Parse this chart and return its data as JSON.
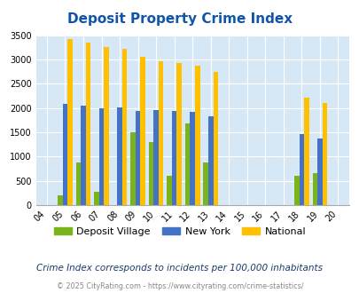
{
  "title": "Deposit Property Crime Index",
  "years": [
    2004,
    2005,
    2006,
    2007,
    2008,
    2009,
    2010,
    2011,
    2012,
    2013,
    2014,
    2015,
    2016,
    2017,
    2018,
    2019,
    2020
  ],
  "deposit_village": [
    0,
    200,
    870,
    270,
    0,
    1500,
    1300,
    610,
    1680,
    870,
    0,
    0,
    0,
    0,
    600,
    650,
    0
  ],
  "new_york": [
    0,
    2090,
    2050,
    2000,
    2020,
    1940,
    1950,
    1930,
    1920,
    1820,
    0,
    0,
    0,
    0,
    1460,
    1380,
    0
  ],
  "national": [
    0,
    3420,
    3350,
    3260,
    3210,
    3050,
    2960,
    2920,
    2870,
    2740,
    0,
    0,
    0,
    0,
    2210,
    2110,
    0
  ],
  "deposit_color": "#7bb31a",
  "newyork_color": "#4472c4",
  "national_color": "#ffc000",
  "bg_color": "#d6e8f5",
  "ylim": [
    0,
    3500
  ],
  "yticks": [
    0,
    500,
    1000,
    1500,
    2000,
    2500,
    3000,
    3500
  ],
  "subtitle": "Crime Index corresponds to incidents per 100,000 inhabitants",
  "footer": "© 2025 CityRating.com - https://www.cityrating.com/crime-statistics/",
  "title_color": "#1155aa",
  "subtitle_color": "#1a3a6b",
  "footer_color": "#888888",
  "legend_labels": [
    "Deposit Village",
    "New York",
    "National"
  ]
}
